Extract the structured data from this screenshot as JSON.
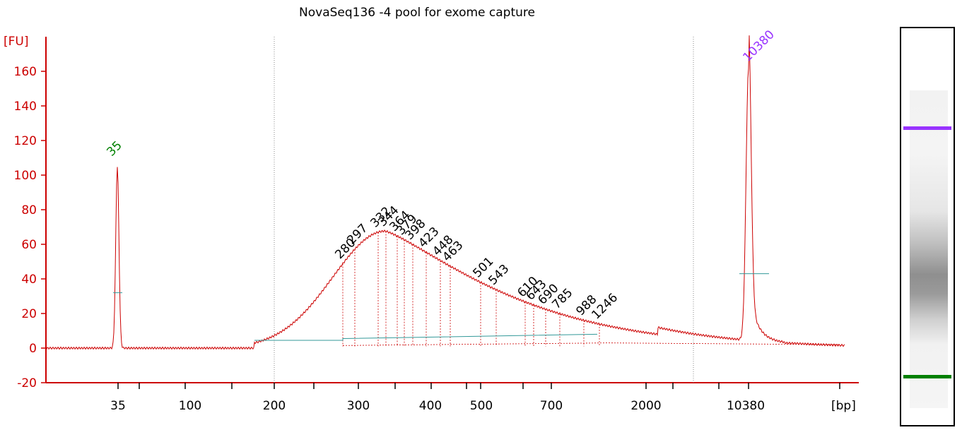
{
  "chart_data": {
    "type": "line",
    "title": "NovaSeq136 -4 pool for exome capture",
    "ylabel": "[FU]",
    "xlabel": "[bp]",
    "ylim": [
      -20,
      175
    ],
    "yticks": [
      -20,
      0,
      20,
      40,
      60,
      80,
      100,
      120,
      140,
      160
    ],
    "xtick_labels": [
      "35",
      "100",
      "200",
      "300",
      "400",
      "500",
      "700",
      "2000",
      "10380"
    ],
    "markers": [
      {
        "label": "35",
        "value": 105,
        "color": "#008000"
      },
      {
        "label": "10380",
        "value": 162,
        "color": "#9933ff"
      }
    ],
    "peak_labels": [
      "280",
      "297",
      "332",
      "344",
      "364",
      "379",
      "398",
      "423",
      "448",
      "463",
      "501",
      "543",
      "610",
      "643",
      "690",
      "785",
      "988",
      "1246"
    ],
    "peak_heights": [
      64,
      66,
      68,
      69,
      68,
      66,
      63,
      60,
      57,
      55,
      51,
      47,
      37,
      34,
      30,
      27,
      20,
      15
    ],
    "smear_range_bp": [
      200,
      2000
    ],
    "colors": {
      "axis": "#cc0000",
      "trace": "#cc0000",
      "baseline": "#339999",
      "text": "#000000"
    }
  },
  "gel": {
    "lower_marker_color": "#008000",
    "upper_marker_color": "#9933ff"
  }
}
